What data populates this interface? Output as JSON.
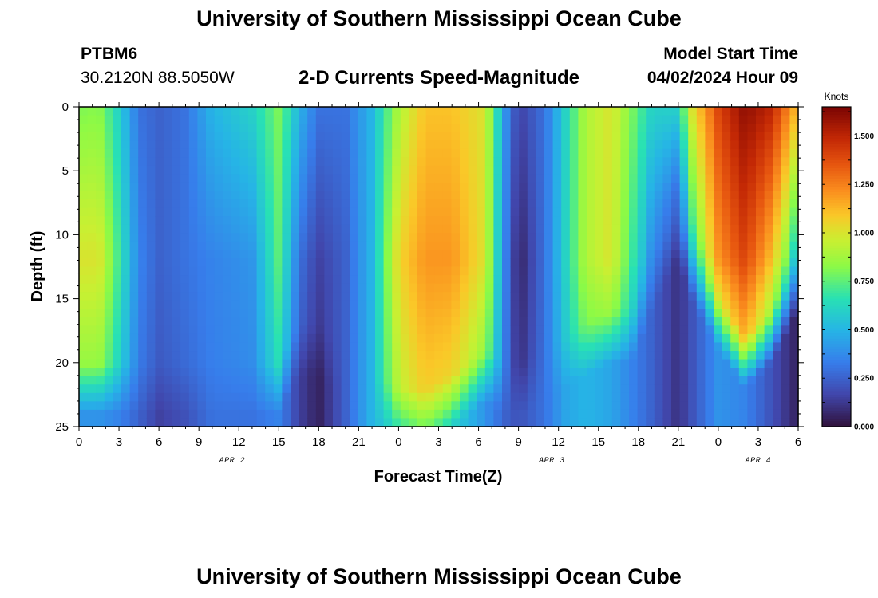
{
  "page": {
    "title_top": "University of Southern Mississippi Ocean Cube",
    "title_bottom": "University of Southern Mississippi Ocean Cube",
    "station_id": "PTBM6",
    "station_coords": "30.2120N  88.5050W",
    "plot_subtitle": "2-D Currents Speed-Magnitude",
    "model_start_label": "Model Start Time",
    "model_start_value": "04/02/2024 Hour 09"
  },
  "chart_data": {
    "type": "heatmap",
    "title": "2-D Currents Speed-Magnitude",
    "xlabel": "Forecast Time(Z)",
    "ylabel": "Depth (ft)",
    "x_range_hours": [
      0,
      54
    ],
    "y_range_ft": [
      0,
      25
    ],
    "y_reversed": true,
    "x_tick_labels": [
      "0",
      "3",
      "6",
      "9",
      "12",
      "15",
      "18",
      "21",
      "0",
      "3",
      "6",
      "9",
      "12",
      "15",
      "18",
      "21",
      "0",
      "3",
      "6"
    ],
    "y_tick_labels": [
      "0",
      "5",
      "10",
      "15",
      "20",
      "25"
    ],
    "date_labels": [
      {
        "text": "APR 2",
        "hour": 11.5
      },
      {
        "text": "APR 3",
        "hour": 35.5
      },
      {
        "text": "APR 4",
        "hour": 51
      }
    ],
    "colorbar": {
      "label": "Knots",
      "min": 0,
      "max": 1.65,
      "tick_labels": [
        "0.000",
        "0.250",
        "0.500",
        "0.750",
        "1.000",
        "1.250",
        "1.500"
      ],
      "tick_values": [
        0,
        0.25,
        0.5,
        0.75,
        1.0,
        1.25,
        1.5
      ]
    },
    "speed_field": {
      "time_hours": [
        0,
        1.5,
        3,
        4.5,
        6,
        8,
        10,
        13,
        15,
        16.5,
        18,
        20,
        22,
        24,
        26,
        28,
        30.5,
        32,
        33,
        35,
        36.5,
        38,
        40,
        41.5,
        43,
        45,
        46,
        48,
        50,
        52,
        54
      ],
      "surface_knots": [
        0.8,
        0.82,
        0.6,
        0.3,
        0.25,
        0.3,
        0.5,
        0.6,
        0.8,
        0.5,
        0.3,
        0.3,
        0.5,
        0.9,
        1.1,
        1.1,
        1.0,
        0.4,
        0.15,
        0.3,
        0.6,
        0.9,
        1.0,
        0.8,
        0.6,
        0.6,
        1.0,
        1.4,
        1.6,
        1.5,
        1.1
      ],
      "core_knots": [
        1.0,
        1.0,
        0.7,
        0.35,
        0.25,
        0.3,
        0.35,
        0.4,
        0.75,
        0.3,
        0.15,
        0.25,
        0.5,
        1.05,
        1.2,
        1.2,
        1.0,
        0.35,
        0.05,
        0.3,
        0.6,
        0.9,
        1.0,
        0.7,
        0.4,
        0.3,
        0.7,
        1.2,
        1.4,
        1.1,
        0.6
      ],
      "bottom_knots": [
        0.4,
        0.4,
        0.35,
        0.25,
        0.15,
        0.2,
        0.3,
        0.3,
        0.35,
        0.15,
        0.05,
        0.25,
        0.5,
        0.6,
        0.7,
        0.6,
        0.4,
        0.25,
        0.2,
        0.3,
        0.45,
        0.5,
        0.45,
        0.35,
        0.25,
        0.1,
        0.2,
        0.4,
        0.35,
        0.2,
        0.05
      ],
      "core_depth_ft": 12,
      "decay_depth_ft": [
        20,
        20,
        20,
        20,
        20,
        20,
        20,
        20,
        20,
        17,
        17,
        19,
        21,
        22,
        22,
        21,
        19,
        20,
        20,
        19,
        18,
        17,
        16,
        16,
        12,
        8,
        11,
        15,
        18,
        16,
        12
      ]
    }
  }
}
